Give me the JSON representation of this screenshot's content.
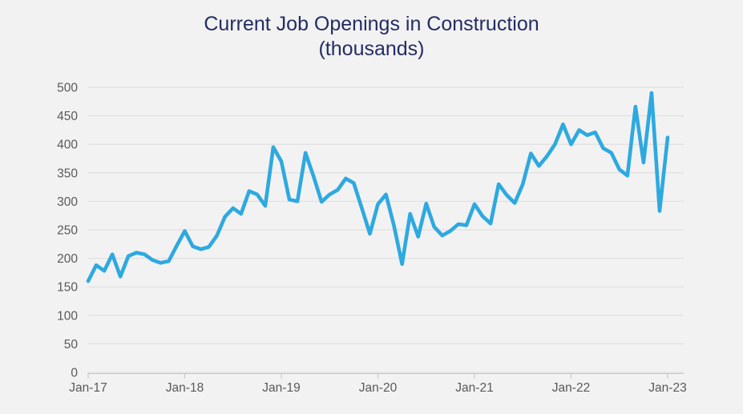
{
  "chart_data": {
    "type": "line",
    "title": "Current Job Openings in Construction",
    "subtitle": "(thousands)",
    "frequency": "monthly",
    "x_start": "Jan-17",
    "x_end": "Jan-23",
    "x_tick_labels": [
      "Jan-17",
      "Jan-18",
      "Jan-19",
      "Jan-20",
      "Jan-21",
      "Jan-22",
      "Jan-23"
    ],
    "y_ticks": [
      0,
      50,
      100,
      150,
      200,
      250,
      300,
      350,
      400,
      450,
      500
    ],
    "ylim": [
      0,
      500
    ],
    "grid": "horizontal-only",
    "legend": "none",
    "values": [
      160,
      188,
      178,
      207,
      168,
      204,
      210,
      207,
      197,
      192,
      195,
      222,
      248,
      221,
      216,
      220,
      240,
      273,
      288,
      278,
      318,
      312,
      292,
      395,
      370,
      303,
      300,
      385,
      344,
      299,
      312,
      320,
      340,
      332,
      288,
      243,
      295,
      312,
      257,
      190,
      278,
      238,
      296,
      255,
      240,
      248,
      260,
      258,
      295,
      274,
      261,
      330,
      311,
      297,
      330,
      384,
      362,
      379,
      400,
      435,
      400,
      425,
      416,
      421,
      393,
      385,
      356,
      345,
      466,
      368,
      490,
      283,
      412
    ],
    "colors": {
      "line": "#2ea9e0",
      "title_text": "#232c62",
      "axis_text": "#595959",
      "gridline": "#dcdcdc",
      "axis_line": "#c3c3c3",
      "background": "#f2f2f2"
    }
  }
}
